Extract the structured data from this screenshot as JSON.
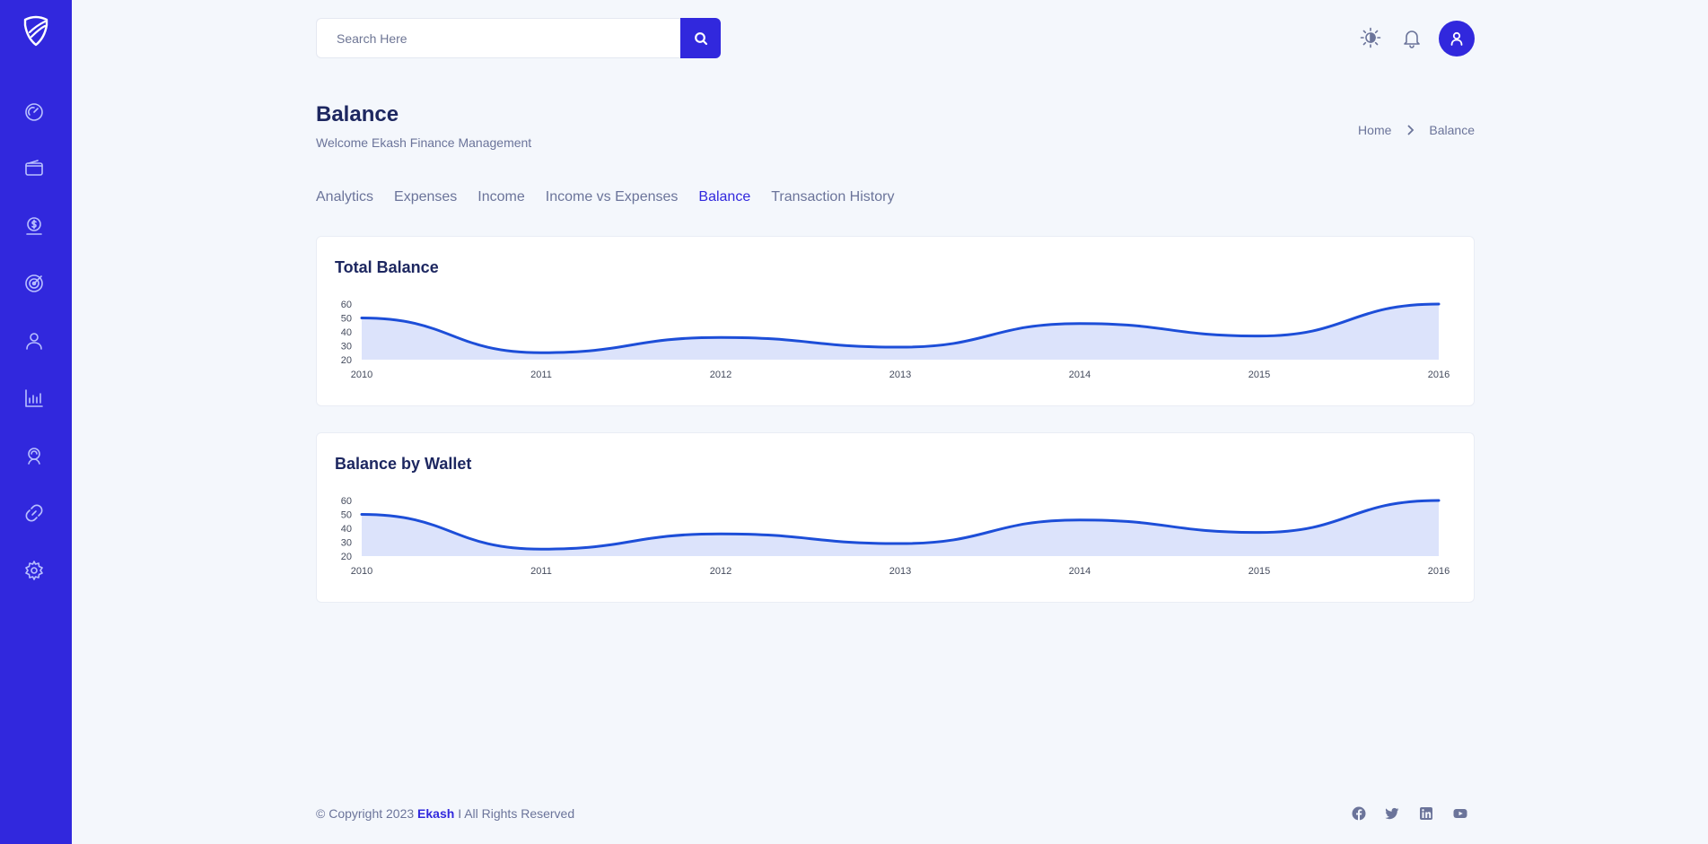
{
  "app": {
    "brand": "Ekash"
  },
  "sidebar": {
    "items": [
      {
        "icon": "dashboard-gauge-icon"
      },
      {
        "icon": "wallet-icon"
      },
      {
        "icon": "budget-dollar-icon"
      },
      {
        "icon": "goals-target-icon"
      },
      {
        "icon": "profile-user-icon"
      },
      {
        "icon": "analytics-chart-icon"
      },
      {
        "icon": "support-icon"
      },
      {
        "icon": "link-icon"
      },
      {
        "icon": "settings-gear-icon"
      }
    ]
  },
  "header": {
    "search_placeholder": "Search Here",
    "search_value": ""
  },
  "page": {
    "title": "Balance",
    "subtitle": "Welcome Ekash Finance Management"
  },
  "breadcrumb": {
    "home": "Home",
    "current": "Balance"
  },
  "tabs": [
    {
      "label": "Analytics",
      "active": false
    },
    {
      "label": "Expenses",
      "active": false
    },
    {
      "label": "Income",
      "active": false
    },
    {
      "label": "Income vs Expenses",
      "active": false
    },
    {
      "label": "Balance",
      "active": true
    },
    {
      "label": "Transaction History",
      "active": false
    }
  ],
  "colors": {
    "primary": "#3128dd",
    "line": "#1d4ed8",
    "area": "#dce3fb",
    "background": "#f4f7fc",
    "text": "#1d2760",
    "muted": "#6b749a"
  },
  "chart_data": [
    {
      "type": "area",
      "title": "Total Balance",
      "x": [
        "2010",
        "2011",
        "2012",
        "2013",
        "2014",
        "2015",
        "2016"
      ],
      "series": [
        {
          "values": [
            50,
            25,
            36,
            29,
            46,
            37,
            60
          ]
        }
      ],
      "yticks": [
        20,
        30,
        40,
        50,
        60
      ],
      "ylim": [
        20,
        60
      ],
      "grid": false,
      "smooth": true
    },
    {
      "type": "area",
      "title": "Balance by Wallet",
      "x": [
        "2010",
        "2011",
        "2012",
        "2013",
        "2014",
        "2015",
        "2016"
      ],
      "series": [
        {
          "values": [
            50,
            25,
            36,
            29,
            46,
            37,
            60
          ]
        }
      ],
      "yticks": [
        20,
        30,
        40,
        50,
        60
      ],
      "ylim": [
        20,
        60
      ],
      "grid": false,
      "smooth": true
    }
  ],
  "footer": {
    "copyright_prefix": "© Copyright 2023",
    "brand": "Ekash",
    "rights": "I All Rights Reserved",
    "social": [
      "facebook-icon",
      "twitter-icon",
      "linkedin-icon",
      "youtube-icon"
    ]
  }
}
